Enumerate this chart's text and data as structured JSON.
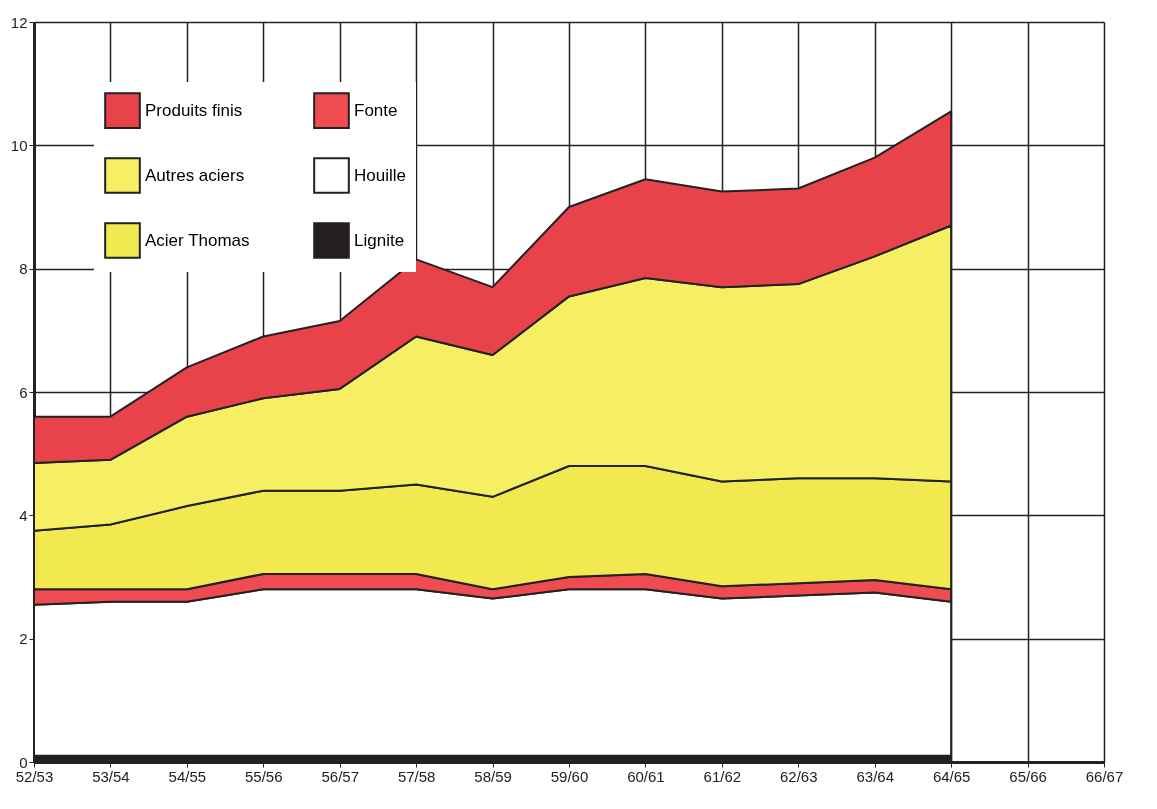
{
  "chart_data": {
    "type": "area",
    "stacked": true,
    "grid": true,
    "legend": "top left",
    "ylim": [
      0,
      12
    ],
    "yticks": [
      0,
      2,
      4,
      6,
      8,
      10,
      12
    ],
    "categories": [
      "52/53",
      "53/54",
      "54/55",
      "55/56",
      "56/57",
      "57/58",
      "58/59",
      "59/60",
      "60/61",
      "61/62",
      "62/63",
      "63/64",
      "64/65",
      "65/66",
      "66/67"
    ],
    "series": [
      {
        "name": "Lignite",
        "color": "#231f20",
        "values": [
          0.1,
          0.1,
          0.1,
          0.1,
          0.1,
          0.1,
          0.1,
          0.1,
          0.1,
          0.1,
          0.1,
          0.1,
          0.1,
          null,
          null
        ]
      },
      {
        "name": "Houille",
        "color": "#ffffff",
        "values": [
          2.45,
          2.5,
          2.5,
          2.7,
          2.7,
          2.7,
          2.55,
          2.7,
          2.7,
          2.55,
          2.6,
          2.65,
          2.5,
          null,
          null
        ]
      },
      {
        "name": "Fonte",
        "color": "#ef4b50",
        "values": [
          0.25,
          0.2,
          0.2,
          0.25,
          0.25,
          0.25,
          0.15,
          0.2,
          0.25,
          0.2,
          0.2,
          0.2,
          0.2,
          null,
          null
        ]
      },
      {
        "name": "Acier Thomas",
        "color": "#f2e84f",
        "values": [
          0.95,
          1.05,
          1.35,
          1.35,
          1.35,
          1.45,
          1.5,
          1.8,
          1.75,
          1.7,
          1.7,
          1.65,
          1.75,
          null,
          null
        ]
      },
      {
        "name": "Autres aciers",
        "color": "#f6ee63",
        "values": [
          1.1,
          1.05,
          1.45,
          1.5,
          1.65,
          2.4,
          2.3,
          2.75,
          3.05,
          3.15,
          3.15,
          3.6,
          4.15,
          null,
          null
        ]
      },
      {
        "name": "Produits finis",
        "color": "#e8424a",
        "values": [
          0.75,
          0.7,
          0.8,
          1.0,
          1.1,
          1.25,
          1.1,
          1.45,
          1.6,
          1.55,
          1.55,
          1.6,
          1.85,
          null,
          null
        ]
      }
    ]
  }
}
